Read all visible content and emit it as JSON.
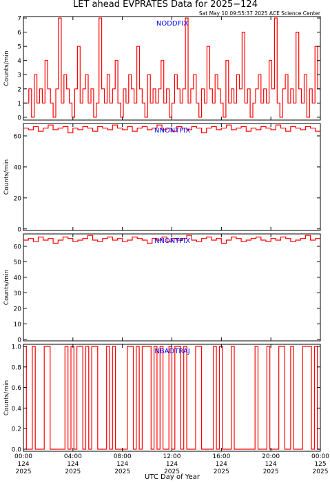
{
  "header": {
    "title": "LET ahead EVPRATES Data for 2025−124",
    "timestamp": "Sat May 10 09:55:37 2025 ACE Science Center"
  },
  "colors": {
    "trace": "#ff0000",
    "panel_label": "#0000ff",
    "axes": "#000000",
    "background": "#ffffff"
  },
  "chart_data": [
    {
      "type": "line",
      "panel_label": "NODDFIX",
      "ylabel": "Counts/min",
      "ylim": [
        -0.2,
        7.1
      ],
      "yticks": [
        0,
        1,
        2,
        3,
        4,
        5,
        6,
        7
      ],
      "series": [
        {
          "values": [
            1,
            1,
            2,
            0,
            3,
            1,
            2,
            1,
            4,
            2,
            1,
            0,
            2,
            7,
            1,
            3,
            2,
            1,
            0,
            2,
            5,
            1,
            2,
            3,
            1,
            2,
            0,
            1,
            7,
            2,
            1,
            3,
            1,
            2,
            4,
            1,
            0,
            2,
            1,
            3,
            2,
            1,
            5,
            2,
            1,
            0,
            3,
            1,
            2,
            1,
            2,
            4,
            1,
            2,
            0,
            1,
            3,
            2,
            1,
            2,
            7,
            1,
            2,
            3,
            1,
            0,
            2,
            1,
            5,
            2,
            1,
            3,
            2,
            1,
            0,
            4,
            1,
            2,
            1,
            3,
            2,
            6,
            1,
            2,
            0,
            1,
            2,
            3,
            1,
            2,
            1,
            4,
            2,
            7,
            1,
            0,
            2,
            3,
            1,
            2,
            1,
            6,
            2,
            1,
            3,
            0,
            2,
            1,
            5,
            2
          ]
        }
      ]
    },
    {
      "type": "line",
      "panel_label": "NNONTPIX",
      "ylabel": "Counts/min",
      "ylim": [
        -1,
        68
      ],
      "yticks": [
        0,
        20,
        40,
        60
      ],
      "series": [
        {
          "values": [
            65,
            64,
            66,
            63,
            65,
            67,
            64,
            65,
            66,
            62,
            65,
            64,
            66,
            65,
            63,
            66,
            65,
            64,
            67,
            65,
            64,
            66,
            63,
            65,
            66,
            64,
            65,
            67,
            64,
            65,
            63,
            66,
            65,
            64,
            66,
            65,
            62,
            65,
            66,
            64,
            65,
            67,
            64,
            65,
            66,
            63,
            65,
            64,
            66,
            65,
            64,
            67,
            65,
            63,
            66,
            65,
            64,
            66,
            65,
            63
          ]
        }
      ]
    },
    {
      "type": "line",
      "panel_label": "NNONTPIX",
      "ylabel": "Counts/min",
      "ylim": [
        -1,
        68
      ],
      "yticks": [
        0,
        10,
        20,
        30,
        40,
        50,
        60
      ],
      "series": [
        {
          "values": [
            64,
            65,
            63,
            66,
            64,
            65,
            62,
            64,
            66,
            65,
            63,
            64,
            65,
            67,
            64,
            63,
            65,
            66,
            64,
            65,
            63,
            64,
            66,
            65,
            64,
            62,
            65,
            64,
            66,
            63,
            65,
            64,
            65,
            67,
            64,
            63,
            65,
            66,
            64,
            65,
            62,
            64,
            66,
            65,
            63,
            64,
            65,
            66,
            64,
            63,
            65,
            64,
            66,
            65,
            63,
            64,
            65,
            67,
            64,
            65
          ]
        }
      ]
    },
    {
      "type": "line",
      "panel_label": "NBADTRAJ",
      "ylabel": "Counts/min",
      "ylim": [
        -0.02,
        1.02
      ],
      "yticks": [
        0.0,
        0.2,
        0.4,
        0.6,
        0.8,
        1.0
      ],
      "ytick_labels": [
        "0.0",
        "0.2",
        "0.4",
        "0.6",
        "0.8",
        "1.0"
      ],
      "series": [
        {
          "values": [
            1,
            0,
            0,
            1,
            0,
            0,
            0,
            1,
            1,
            0,
            0,
            0,
            0,
            0,
            1,
            0,
            1,
            0,
            1,
            1,
            0,
            1,
            0,
            1,
            1,
            0,
            0,
            0,
            1,
            0,
            1,
            0,
            0,
            0,
            0,
            1,
            1,
            0,
            1,
            0,
            1,
            1,
            1,
            0,
            1,
            0,
            1,
            0,
            0,
            1,
            0,
            1,
            1,
            0,
            1,
            0,
            0,
            0,
            1,
            1,
            0,
            0,
            0,
            0,
            1,
            0,
            1,
            0,
            0,
            0,
            1,
            0,
            0,
            0,
            0,
            0,
            0,
            0,
            1,
            0,
            0,
            0,
            1,
            0,
            0,
            0,
            1,
            1,
            0,
            0,
            1,
            0,
            0,
            0,
            1,
            1,
            1,
            0,
            1,
            0
          ]
        }
      ]
    }
  ],
  "x_axis": {
    "xlabel": "UTC Day of Year",
    "xlim": [
      0,
      24
    ],
    "ticks": [
      {
        "x": 0,
        "time": "00:00",
        "doy": "124",
        "year": "2025"
      },
      {
        "x": 4,
        "time": "04:00",
        "doy": "124",
        "year": "2025"
      },
      {
        "x": 8,
        "time": "08:00",
        "doy": "124",
        "year": "2025"
      },
      {
        "x": 12,
        "time": "12:00",
        "doy": "124",
        "year": "2025"
      },
      {
        "x": 16,
        "time": "16:00",
        "doy": "124",
        "year": "2025"
      },
      {
        "x": 20,
        "time": "20:00",
        "doy": "124",
        "year": "2025"
      },
      {
        "x": 24,
        "time": "00:00",
        "doy": "125",
        "year": "2025"
      }
    ]
  }
}
